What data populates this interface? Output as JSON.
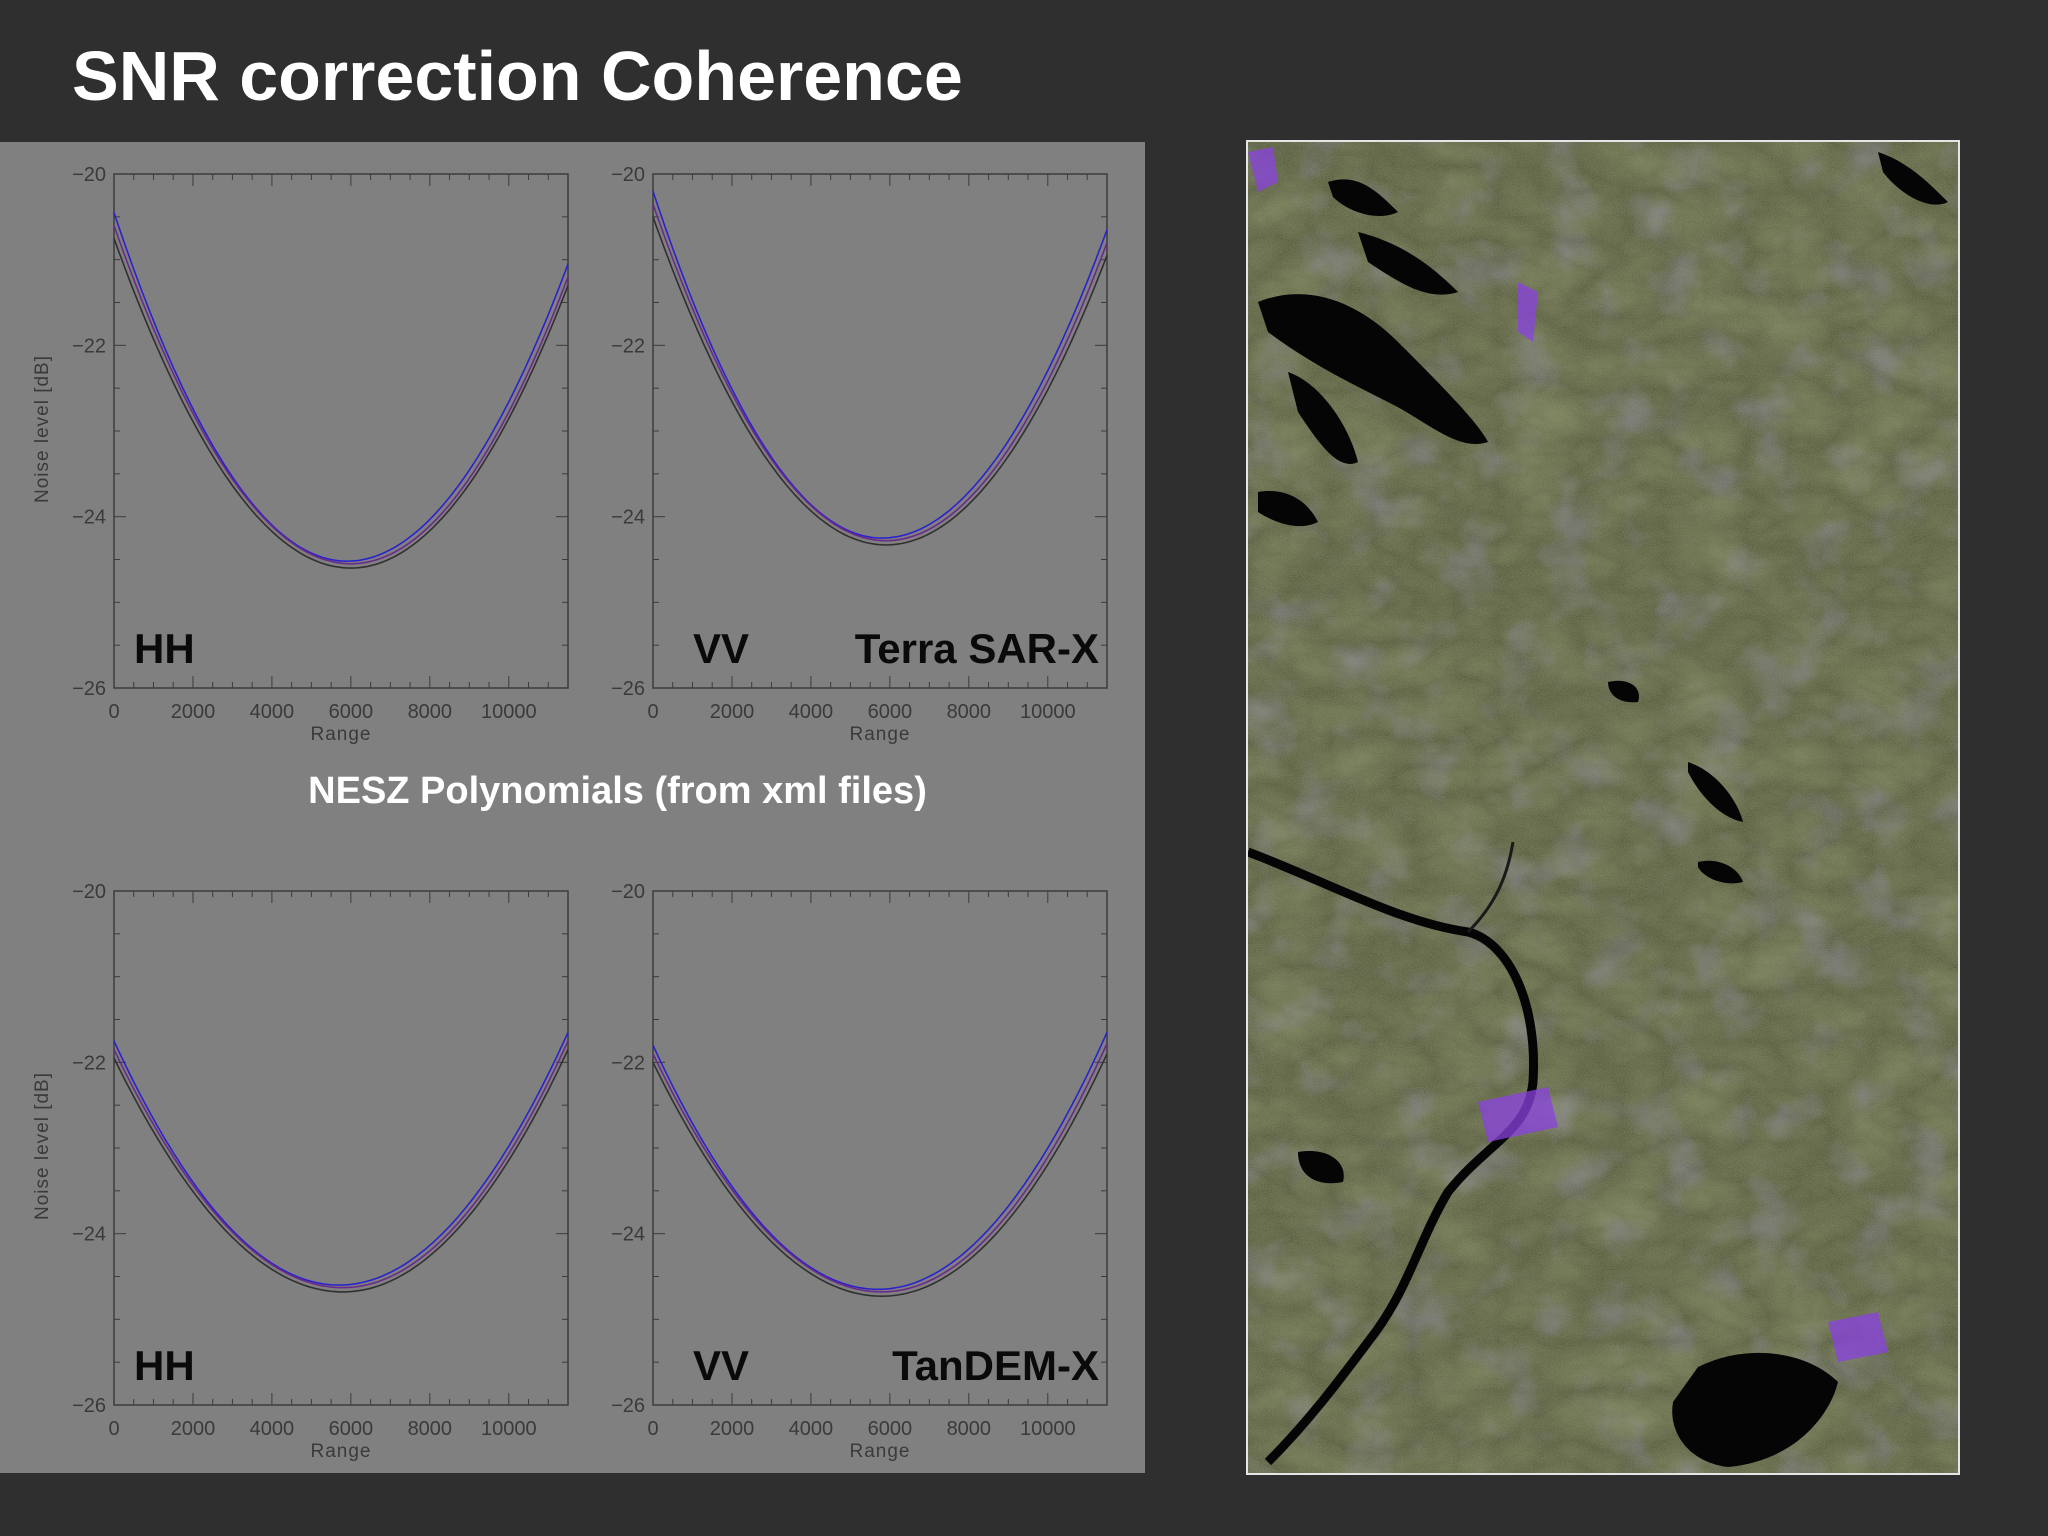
{
  "slide": {
    "title": "SNR correction Coherence",
    "caption": "NESZ Polynomials (from xml files)"
  },
  "colors": {
    "background": "#2f2f2f",
    "panel": "#808080",
    "axis": "#3c3c3c",
    "tick_label": "#3a3a3a",
    "curve_primary": "#2b22cc",
    "curve_secondary": "#6a2a8a",
    "curve_dark": "#303030"
  },
  "chart_data": [
    {
      "type": "line",
      "polarization": "HH",
      "satellite": "",
      "xlabel": "Range",
      "ylabel": "Noise level [dB]",
      "xlim": [
        0,
        11500
      ],
      "ylim": [
        -26,
        -20
      ],
      "xticks": [
        "0",
        "2000",
        "4000",
        "6000",
        "8000",
        "10000"
      ],
      "yticks": [
        "-20",
        "-22",
        "-24",
        "-26"
      ],
      "series": [
        {
          "color": "#2b22cc",
          "points": [
            [
              0,
              -20.45
            ],
            [
              5900,
              -24.52
            ],
            [
              11500,
              -21.05
            ]
          ]
        },
        {
          "color": "#6a2a8a",
          "points": [
            [
              0,
              -20.6
            ],
            [
              6000,
              -24.55
            ],
            [
              11500,
              -21.2
            ]
          ]
        },
        {
          "color": "#303030",
          "points": [
            [
              0,
              -20.75
            ],
            [
              6000,
              -24.6
            ],
            [
              11500,
              -21.3
            ]
          ]
        }
      ]
    },
    {
      "type": "line",
      "polarization": "VV",
      "satellite": "Terra SAR-X",
      "xlabel": "Range",
      "ylabel": "",
      "xlim": [
        0,
        11500
      ],
      "ylim": [
        -26,
        -20
      ],
      "xticks": [
        "0",
        "2000",
        "4000",
        "6000",
        "8000",
        "10000"
      ],
      "yticks": [
        "-20",
        "-22",
        "-24",
        "-26"
      ],
      "series": [
        {
          "color": "#2b22cc",
          "points": [
            [
              0,
              -20.2
            ],
            [
              5800,
              -24.25
            ],
            [
              11500,
              -20.65
            ]
          ]
        },
        {
          "color": "#6a2a8a",
          "points": [
            [
              0,
              -20.35
            ],
            [
              5900,
              -24.28
            ],
            [
              11500,
              -20.8
            ]
          ]
        },
        {
          "color": "#303030",
          "points": [
            [
              0,
              -20.5
            ],
            [
              5900,
              -24.33
            ],
            [
              11500,
              -20.95
            ]
          ]
        }
      ]
    },
    {
      "type": "line",
      "polarization": "HH",
      "satellite": "",
      "xlabel": "Range",
      "ylabel": "Noise level [dB]",
      "xlim": [
        0,
        11500
      ],
      "ylim": [
        -26,
        -20
      ],
      "xticks": [
        "0",
        "2000",
        "4000",
        "6000",
        "8000",
        "10000"
      ],
      "yticks": [
        "-20",
        "-22",
        "-24",
        "-26"
      ],
      "series": [
        {
          "color": "#2b22cc",
          "points": [
            [
              0,
              -21.75
            ],
            [
              5700,
              -24.6
            ],
            [
              11500,
              -21.65
            ]
          ]
        },
        {
          "color": "#6a2a8a",
          "points": [
            [
              0,
              -21.85
            ],
            [
              5800,
              -24.63
            ],
            [
              11500,
              -21.75
            ]
          ]
        },
        {
          "color": "#303030",
          "points": [
            [
              0,
              -21.95
            ],
            [
              5800,
              -24.68
            ],
            [
              11500,
              -21.85
            ]
          ]
        }
      ]
    },
    {
      "type": "line",
      "polarization": "VV",
      "satellite": "TanDEM-X",
      "xlabel": "Range",
      "ylabel": "",
      "xlim": [
        0,
        11500
      ],
      "ylim": [
        -26,
        -20
      ],
      "xticks": [
        "0",
        "2000",
        "4000",
        "6000",
        "8000",
        "10000"
      ],
      "yticks": [
        "-20",
        "-22",
        "-24",
        "-26"
      ],
      "series": [
        {
          "color": "#2b22cc",
          "points": [
            [
              0,
              -21.8
            ],
            [
              5700,
              -24.65
            ],
            [
              11500,
              -21.65
            ]
          ]
        },
        {
          "color": "#6a2a8a",
          "points": [
            [
              0,
              -21.9
            ],
            [
              5800,
              -24.68
            ],
            [
              11500,
              -21.78
            ]
          ]
        },
        {
          "color": "#303030",
          "points": [
            [
              0,
              -22.0
            ],
            [
              5800,
              -24.73
            ],
            [
              11500,
              -21.9
            ]
          ]
        }
      ]
    }
  ],
  "map": {
    "description_name": "sar-coherence-composite-image",
    "colors": [
      "#4c5238",
      "#6b7a3a",
      "#5a5a8a",
      "#3a3f2e",
      "#000000",
      "#4a3acc"
    ]
  }
}
